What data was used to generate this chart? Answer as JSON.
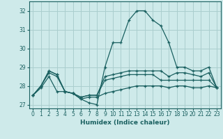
{
  "xlabel": "Humidex (Indice chaleur)",
  "background_color": "#ceeaea",
  "grid_color": "#aacece",
  "line_color": "#1a6060",
  "xlim": [
    -0.5,
    23.5
  ],
  "ylim": [
    26.8,
    32.5
  ],
  "yticks": [
    27,
    28,
    29,
    30,
    31,
    32
  ],
  "xticks": [
    0,
    1,
    2,
    3,
    4,
    5,
    6,
    7,
    8,
    9,
    10,
    11,
    12,
    13,
    14,
    15,
    16,
    17,
    18,
    19,
    20,
    21,
    22,
    23
  ],
  "lines": [
    [
      27.5,
      28.0,
      28.8,
      28.6,
      27.7,
      27.6,
      27.3,
      27.1,
      27.0,
      29.0,
      30.3,
      30.3,
      31.5,
      32.0,
      32.0,
      31.5,
      31.2,
      30.3,
      29.0,
      29.0,
      28.8,
      28.8,
      29.0,
      27.9
    ],
    [
      27.5,
      28.0,
      28.8,
      28.6,
      27.7,
      27.6,
      27.4,
      27.5,
      27.5,
      28.5,
      28.6,
      28.7,
      28.8,
      28.8,
      28.8,
      28.8,
      28.8,
      28.5,
      28.7,
      28.7,
      28.6,
      28.5,
      28.7,
      27.9
    ],
    [
      27.5,
      28.0,
      28.7,
      28.5,
      27.7,
      27.6,
      27.4,
      27.5,
      27.5,
      28.3,
      28.4,
      28.5,
      28.6,
      28.6,
      28.6,
      28.6,
      28.3,
      28.3,
      28.3,
      28.3,
      28.3,
      28.3,
      28.3,
      27.9
    ],
    [
      27.5,
      27.9,
      28.5,
      27.7,
      27.7,
      27.6,
      27.3,
      27.4,
      27.4,
      27.6,
      27.7,
      27.8,
      27.9,
      28.0,
      28.0,
      28.0,
      28.0,
      27.9,
      28.0,
      28.0,
      27.9,
      27.9,
      28.0,
      27.9
    ]
  ]
}
